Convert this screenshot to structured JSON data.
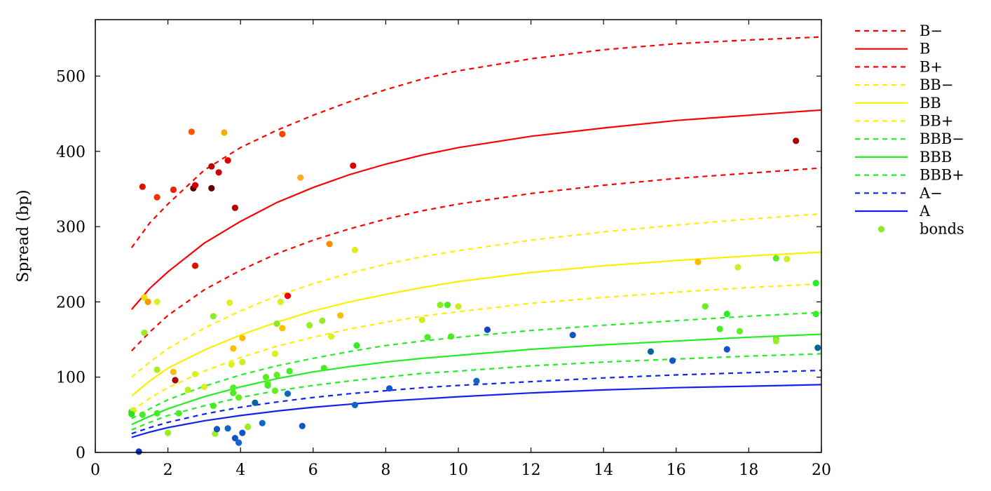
{
  "chart_data": {
    "type": "scatter",
    "title": "",
    "xlabel": "",
    "ylabel": "Spread (bp)",
    "xlim": [
      0,
      20
    ],
    "ylim": [
      0,
      575
    ],
    "x_ticks": [
      0,
      2,
      4,
      6,
      8,
      10,
      12,
      14,
      16,
      18,
      20
    ],
    "y_ticks": [
      0,
      100,
      200,
      300,
      400,
      500
    ],
    "grid": false,
    "legend_position": "outside-right",
    "curve_x": [
      1,
      1.5,
      2,
      3,
      4,
      5,
      6,
      7,
      8,
      9,
      10,
      12,
      14,
      16,
      18,
      20
    ],
    "series": [
      {
        "name": "B−",
        "style": "dashed",
        "color": "#ff0000",
        "values": [
          272,
          305,
          330,
          375,
          405,
          428,
          448,
          466,
          482,
          496,
          507,
          523,
          535,
          543,
          548,
          552
        ]
      },
      {
        "name": "B",
        "style": "solid",
        "color": "#ff0000",
        "values": [
          190,
          218,
          240,
          278,
          307,
          332,
          352,
          369,
          383,
          395,
          405,
          420,
          431,
          441,
          448,
          455
        ]
      },
      {
        "name": "B+",
        "style": "dashed",
        "color": "#ff0000",
        "values": [
          135,
          160,
          182,
          216,
          242,
          264,
          282,
          297,
          310,
          321,
          330,
          344,
          355,
          364,
          371,
          378
        ]
      },
      {
        "name": "BB−",
        "style": "dashed",
        "color": "#ffee00",
        "values": [
          100,
          120,
          138,
          165,
          188,
          208,
          224,
          238,
          250,
          260,
          268,
          282,
          293,
          302,
          310,
          317
        ]
      },
      {
        "name": "BB",
        "style": "solid",
        "color": "#ffee00",
        "values": [
          75,
          95,
          112,
          136,
          156,
          173,
          188,
          200,
          210,
          219,
          227,
          239,
          248,
          255,
          261,
          266
        ]
      },
      {
        "name": "BB+",
        "style": "dashed",
        "color": "#ffee00",
        "values": [
          55,
          72,
          86,
          108,
          126,
          141,
          153,
          164,
          173,
          181,
          187,
          198,
          206,
          213,
          219,
          224
        ]
      },
      {
        "name": "BBB−",
        "style": "dashed",
        "color": "#22ee22",
        "values": [
          45,
          58,
          70,
          88,
          103,
          115,
          125,
          134,
          142,
          148,
          153,
          162,
          169,
          175,
          181,
          186
        ]
      },
      {
        "name": "BBB",
        "style": "solid",
        "color": "#22ee22",
        "values": [
          37,
          48,
          58,
          74,
          87,
          98,
          107,
          114,
          120,
          125,
          129,
          137,
          143,
          148,
          153,
          157
        ]
      },
      {
        "name": "BBB+",
        "style": "dashed",
        "color": "#22ee22",
        "values": [
          30,
          40,
          49,
          62,
          73,
          82,
          89,
          95,
          100,
          105,
          108,
          115,
          120,
          124,
          128,
          131
        ]
      },
      {
        "name": "A−",
        "style": "dashed",
        "color": "#1122ee",
        "values": [
          25,
          33,
          40,
          51,
          60,
          67,
          73,
          78,
          82,
          86,
          89,
          94,
          99,
          103,
          106,
          109
        ]
      },
      {
        "name": "A",
        "style": "solid",
        "color": "#1122ee",
        "values": [
          20,
          27,
          33,
          42,
          49,
          55,
          60,
          64,
          68,
          71,
          74,
          79,
          83,
          86,
          88,
          90
        ]
      }
    ],
    "bonds": {
      "name": "bonds",
      "legend_color": "#88ee22",
      "points": [
        {
          "x": 1.3,
          "y": 353,
          "c": "#dd1100"
        },
        {
          "x": 1.7,
          "y": 339,
          "c": "#ee3300"
        },
        {
          "x": 2.15,
          "y": 349,
          "c": "#ee2200"
        },
        {
          "x": 2.65,
          "y": 426,
          "c": "#ff5500"
        },
        {
          "x": 2.7,
          "y": 351,
          "c": "#550000"
        },
        {
          "x": 2.75,
          "y": 355,
          "c": "#cc0000"
        },
        {
          "x": 3.2,
          "y": 380,
          "c": "#bb0000"
        },
        {
          "x": 3.2,
          "y": 351,
          "c": "#660000"
        },
        {
          "x": 3.4,
          "y": 372,
          "c": "#cc0000"
        },
        {
          "x": 3.55,
          "y": 425,
          "c": "#ffaa00"
        },
        {
          "x": 3.65,
          "y": 388,
          "c": "#dd0000"
        },
        {
          "x": 3.85,
          "y": 325,
          "c": "#bb0000"
        },
        {
          "x": 5.15,
          "y": 423,
          "c": "#ff4400"
        },
        {
          "x": 5.65,
          "y": 365,
          "c": "#ffaa22"
        },
        {
          "x": 7.1,
          "y": 381,
          "c": "#dd0000"
        },
        {
          "x": 19.3,
          "y": 414,
          "c": "#aa0000"
        },
        {
          "x": 2.75,
          "y": 248,
          "c": "#dd1100"
        },
        {
          "x": 5.3,
          "y": 208,
          "c": "#ee0000"
        },
        {
          "x": 2.2,
          "y": 96,
          "c": "#aa0000"
        },
        {
          "x": 6.45,
          "y": 277,
          "c": "#ff8800"
        },
        {
          "x": 7.15,
          "y": 269,
          "c": "#ddee22"
        },
        {
          "x": 1.35,
          "y": 206,
          "c": "#eedd00"
        },
        {
          "x": 1.45,
          "y": 200,
          "c": "#ff9900"
        },
        {
          "x": 1.7,
          "y": 200,
          "c": "#ddee22"
        },
        {
          "x": 1.7,
          "y": 110,
          "c": "#aaee22"
        },
        {
          "x": 2.15,
          "y": 107,
          "c": "#ffbb00"
        },
        {
          "x": 2.75,
          "y": 104,
          "c": "#ddee22"
        },
        {
          "x": 3.0,
          "y": 87,
          "c": "#ddee22"
        },
        {
          "x": 3.7,
          "y": 199,
          "c": "#ddee22"
        },
        {
          "x": 3.75,
          "y": 117,
          "c": "#ddee22"
        },
        {
          "x": 3.8,
          "y": 138,
          "c": "#ffbb00"
        },
        {
          "x": 4.05,
          "y": 152,
          "c": "#ffbb00"
        },
        {
          "x": 4.05,
          "y": 120,
          "c": "#ccee22"
        },
        {
          "x": 4.95,
          "y": 131,
          "c": "#ddee22"
        },
        {
          "x": 5.1,
          "y": 200,
          "c": "#ddee22"
        },
        {
          "x": 5.15,
          "y": 165,
          "c": "#ffbb00"
        },
        {
          "x": 6.5,
          "y": 154,
          "c": "#ddee22"
        },
        {
          "x": 6.75,
          "y": 182,
          "c": "#ffbb00"
        },
        {
          "x": 9.0,
          "y": 176,
          "c": "#ccee22"
        },
        {
          "x": 10.0,
          "y": 194,
          "c": "#ccee22"
        },
        {
          "x": 16.6,
          "y": 253,
          "c": "#ffbb00"
        },
        {
          "x": 17.7,
          "y": 246,
          "c": "#ccee22"
        },
        {
          "x": 19.05,
          "y": 257,
          "c": "#ccee22"
        },
        {
          "x": 1.35,
          "y": 159,
          "c": "#99ee22"
        },
        {
          "x": 3.25,
          "y": 181,
          "c": "#88ee22"
        },
        {
          "x": 5.0,
          "y": 171,
          "c": "#88ee22"
        },
        {
          "x": 5.9,
          "y": 169,
          "c": "#99ee22"
        },
        {
          "x": 6.25,
          "y": 175,
          "c": "#99ee22"
        },
        {
          "x": 9.5,
          "y": 196,
          "c": "#88ee22"
        },
        {
          "x": 9.7,
          "y": 196,
          "c": "#44ee22"
        },
        {
          "x": 9.15,
          "y": 153,
          "c": "#44ee22"
        },
        {
          "x": 9.8,
          "y": 154,
          "c": "#44ee22"
        },
        {
          "x": 7.2,
          "y": 142,
          "c": "#33ee22"
        },
        {
          "x": 16.8,
          "y": 194,
          "c": "#66ee22"
        },
        {
          "x": 17.2,
          "y": 164,
          "c": "#44ee22"
        },
        {
          "x": 17.4,
          "y": 184,
          "c": "#22ee22"
        },
        {
          "x": 17.75,
          "y": 161,
          "c": "#66ee22"
        },
        {
          "x": 18.75,
          "y": 258,
          "c": "#55ee22"
        },
        {
          "x": 18.75,
          "y": 151,
          "c": "#66ee22"
        },
        {
          "x": 18.75,
          "y": 148,
          "c": "#99ee22"
        },
        {
          "x": 19.85,
          "y": 225,
          "c": "#22ee22"
        },
        {
          "x": 19.85,
          "y": 184,
          "c": "#33ee22"
        },
        {
          "x": 1.0,
          "y": 54,
          "c": "#22dd22"
        },
        {
          "x": 1.05,
          "y": 56,
          "c": "#ddee22"
        },
        {
          "x": 1.0,
          "y": 51,
          "c": "#33dd22"
        },
        {
          "x": 1.3,
          "y": 50,
          "c": "#44ee22"
        },
        {
          "x": 1.7,
          "y": 52,
          "c": "#44ee22"
        },
        {
          "x": 2.0,
          "y": 26,
          "c": "#99ee22"
        },
        {
          "x": 2.3,
          "y": 52,
          "c": "#44ee22"
        },
        {
          "x": 2.55,
          "y": 83,
          "c": "#bbee22"
        },
        {
          "x": 3.25,
          "y": 62,
          "c": "#44ee22"
        },
        {
          "x": 3.3,
          "y": 25,
          "c": "#99ee22"
        },
        {
          "x": 3.8,
          "y": 86,
          "c": "#55ee22"
        },
        {
          "x": 3.8,
          "y": 79,
          "c": "#44ee22"
        },
        {
          "x": 3.95,
          "y": 73,
          "c": "#66ee22"
        },
        {
          "x": 4.2,
          "y": 34,
          "c": "#99ee22"
        },
        {
          "x": 4.7,
          "y": 100,
          "c": "#55ee22"
        },
        {
          "x": 4.75,
          "y": 92,
          "c": "#66ee22"
        },
        {
          "x": 4.75,
          "y": 89,
          "c": "#44ee22"
        },
        {
          "x": 4.95,
          "y": 82,
          "c": "#66ee22"
        },
        {
          "x": 5.0,
          "y": 103,
          "c": "#66ee22"
        },
        {
          "x": 5.35,
          "y": 108,
          "c": "#44ee22"
        },
        {
          "x": 6.3,
          "y": 112,
          "c": "#44ee22"
        },
        {
          "x": 1.2,
          "y": 1,
          "c": "#0033bb"
        },
        {
          "x": 3.35,
          "y": 31,
          "c": "#1155cc"
        },
        {
          "x": 3.65,
          "y": 32,
          "c": "#1166cc"
        },
        {
          "x": 3.85,
          "y": 19,
          "c": "#1155cc"
        },
        {
          "x": 3.95,
          "y": 13,
          "c": "#1166cc"
        },
        {
          "x": 4.05,
          "y": 26,
          "c": "#1155cc"
        },
        {
          "x": 4.4,
          "y": 66,
          "c": "#006699"
        },
        {
          "x": 4.6,
          "y": 39,
          "c": "#1166cc"
        },
        {
          "x": 5.3,
          "y": 78,
          "c": "#1166bb"
        },
        {
          "x": 5.7,
          "y": 35,
          "c": "#1155cc"
        },
        {
          "x": 7.15,
          "y": 63,
          "c": "#1166bb"
        },
        {
          "x": 8.1,
          "y": 85,
          "c": "#1155cc"
        },
        {
          "x": 10.5,
          "y": 95,
          "c": "#1166bb"
        },
        {
          "x": 10.8,
          "y": 163,
          "c": "#1144cc"
        },
        {
          "x": 13.15,
          "y": 156,
          "c": "#1155cc"
        },
        {
          "x": 15.3,
          "y": 134,
          "c": "#006699"
        },
        {
          "x": 15.9,
          "y": 122,
          "c": "#1155cc"
        },
        {
          "x": 17.4,
          "y": 137,
          "c": "#1155cc"
        },
        {
          "x": 19.9,
          "y": 139,
          "c": "#006699"
        }
      ]
    }
  }
}
